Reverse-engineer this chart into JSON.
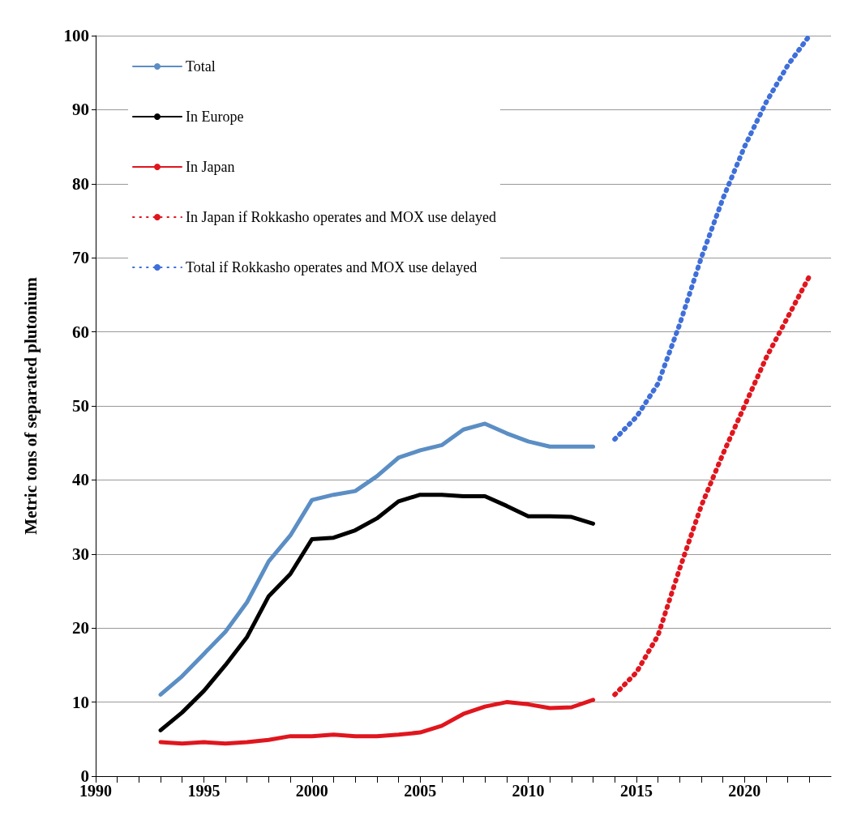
{
  "chart_data": {
    "type": "line",
    "ylabel": "Metric tons of separated plutonium",
    "xlim": [
      1990,
      2024
    ],
    "ylim": [
      0,
      100
    ],
    "xticks": [
      1990,
      {
        "value": 1991,
        "label": null
      },
      {
        "value": 1992,
        "label": null
      },
      {
        "value": 1993,
        "label": null
      },
      {
        "value": 1994,
        "label": null
      },
      1995,
      {
        "value": 1996,
        "label": null
      },
      {
        "value": 1997,
        "label": null
      },
      {
        "value": 1998,
        "label": null
      },
      {
        "value": 1999,
        "label": null
      },
      2000,
      {
        "value": 2001,
        "label": null
      },
      {
        "value": 2002,
        "label": null
      },
      {
        "value": 2003,
        "label": null
      },
      {
        "value": 2004,
        "label": null
      },
      2005,
      {
        "value": 2006,
        "label": null
      },
      {
        "value": 2007,
        "label": null
      },
      {
        "value": 2008,
        "label": null
      },
      {
        "value": 2009,
        "label": null
      },
      2010,
      {
        "value": 2011,
        "label": null
      },
      {
        "value": 2012,
        "label": null
      },
      {
        "value": 2013,
        "label": null
      },
      {
        "value": 2014,
        "label": null
      },
      2015,
      {
        "value": 2016,
        "label": null
      },
      {
        "value": 2017,
        "label": null
      },
      {
        "value": 2018,
        "label": null
      },
      {
        "value": 2019,
        "label": null
      },
      2020,
      {
        "value": 2021,
        "label": null
      },
      {
        "value": 2022,
        "label": null
      },
      {
        "value": 2023,
        "label": null
      }
    ],
    "yticks": [
      0,
      10,
      20,
      30,
      40,
      50,
      60,
      70,
      80,
      90,
      100
    ],
    "grid": "y",
    "legend": "top left",
    "marker": "none",
    "series": [
      {
        "name": "Total",
        "color": "#5b8ec4",
        "line_style": "solid",
        "x": [
          1993,
          1994,
          1995,
          1996,
          1997,
          1998,
          1999,
          2000,
          2001,
          2002,
          2003,
          2004,
          2005,
          2006,
          2007,
          2008,
          2009,
          2010,
          2011,
          2012,
          2013
        ],
        "values": [
          11,
          13.5,
          16.5,
          19.5,
          23.5,
          29,
          32.5,
          37.3,
          38,
          38.5,
          40.5,
          43,
          44,
          44.7,
          46.8,
          47.6,
          46.3,
          45.2,
          44.5,
          44.5,
          44.5
        ]
      },
      {
        "name": "In Europe",
        "color": "#000000",
        "line_style": "solid",
        "x": [
          1993,
          1994,
          1995,
          1996,
          1997,
          1998,
          1999,
          2000,
          2001,
          2002,
          2003,
          2004,
          2005,
          2006,
          2007,
          2008,
          2009,
          2010,
          2011,
          2012,
          2013
        ],
        "values": [
          6.2,
          8.6,
          11.5,
          15,
          18.8,
          24.3,
          27.3,
          32,
          32.2,
          33.2,
          34.8,
          37.1,
          38,
          38,
          37.8,
          37.8,
          36.5,
          35.1,
          35.1,
          35,
          34.1
        ]
      },
      {
        "name": "In Japan",
        "color": "#e0161e",
        "line_style": "solid",
        "x": [
          1993,
          1994,
          1995,
          1996,
          1997,
          1998,
          1999,
          2000,
          2001,
          2002,
          2003,
          2004,
          2005,
          2006,
          2007,
          2008,
          2009,
          2010,
          2011,
          2012,
          2013
        ],
        "values": [
          4.6,
          4.4,
          4.6,
          4.4,
          4.6,
          4.9,
          5.4,
          5.4,
          5.6,
          5.4,
          5.4,
          5.6,
          5.9,
          6.8,
          8.4,
          9.4,
          10,
          9.7,
          9.2,
          9.3,
          10.3
        ]
      },
      {
        "name": "In Japan if Rokkasho operates and MOX use delayed",
        "color": "#e0161e",
        "line_style": "dotted",
        "x": [
          2014,
          2015,
          2016,
          2017,
          2018,
          2019,
          2020,
          2021,
          2022,
          2023
        ],
        "values": [
          11,
          14,
          19,
          28,
          36.5,
          43.5,
          50,
          56.5,
          62,
          67.5
        ]
      },
      {
        "name": "Total if Rokkasho operates and MOX use delayed",
        "color": "#3f6fd8",
        "line_style": "dotted",
        "x": [
          2014,
          2015,
          2016,
          2017,
          2018,
          2019,
          2020,
          2021,
          2022,
          2023
        ],
        "values": [
          45.5,
          48.5,
          53,
          61,
          70,
          78,
          85,
          91,
          96,
          100
        ]
      }
    ]
  }
}
